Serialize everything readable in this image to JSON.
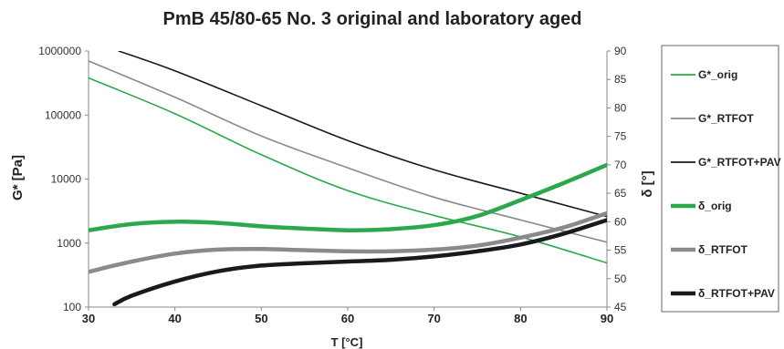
{
  "chart_data": {
    "type": "line",
    "title": "PmB  45/80-65 No. 3 original and laboratory aged",
    "xlabel": "T [°C]",
    "ylabel_left": "G* [Pa]",
    "ylabel_right": "δ [°]",
    "x_ticks": [
      "30",
      "40",
      "50",
      "60",
      "70",
      "80",
      "90"
    ],
    "y_left_ticks": [
      "100",
      "1000",
      "10000",
      "100000",
      "1000000"
    ],
    "y_right_ticks": [
      "45",
      "50",
      "55",
      "60",
      "65",
      "70",
      "75",
      "80",
      "85",
      "90"
    ],
    "xlim": [
      30,
      90
    ],
    "ylim_left": [
      100,
      1000000
    ],
    "ylim_right": [
      45,
      90
    ],
    "y_left_scale": "log",
    "grid": false,
    "legend_position": "right",
    "series": [
      {
        "name": "G*_orig",
        "axis": "left",
        "color": "#2aa84a",
        "style": "thin",
        "x": [
          30,
          40,
          50,
          60,
          70,
          80,
          90
        ],
        "y": [
          380000,
          105000,
          24000,
          6600,
          2700,
          1250,
          490
        ]
      },
      {
        "name": "G*_RTFOT",
        "axis": "left",
        "color": "#8a8a8a",
        "style": "thin",
        "x": [
          30,
          40,
          50,
          60,
          70,
          80,
          90
        ],
        "y": [
          700000,
          190000,
          47000,
          15000,
          5200,
          2300,
          1030
        ]
      },
      {
        "name": "G*_RTFOT+PAV",
        "axis": "left",
        "color": "#1a1a1a",
        "style": "thin",
        "x": [
          33.5,
          40,
          50,
          60,
          70,
          80,
          90
        ],
        "y": [
          1000000,
          490000,
          140000,
          40000,
          14000,
          6000,
          2600
        ]
      },
      {
        "name": "δ_orig",
        "axis": "right",
        "color": "#2aa84a",
        "style": "thick",
        "x": [
          30,
          35,
          40,
          45,
          50,
          55,
          60,
          65,
          70,
          75,
          80,
          85,
          90
        ],
        "y": [
          58.5,
          59.6,
          60.0,
          59.8,
          59.2,
          58.8,
          58.5,
          58.7,
          59.4,
          61.0,
          63.8,
          66.8,
          70.0
        ]
      },
      {
        "name": "δ_RTFOT",
        "axis": "right",
        "color": "#8a8a8a",
        "style": "thick",
        "x": [
          30,
          35,
          40,
          45,
          50,
          55,
          60,
          65,
          70,
          75,
          80,
          85,
          90
        ],
        "y": [
          51.2,
          53.0,
          54.4,
          55.1,
          55.2,
          55.0,
          54.8,
          54.8,
          55.1,
          55.8,
          57.2,
          59.0,
          61.5
        ]
      },
      {
        "name": "δ_RTFOT+PAV",
        "axis": "right",
        "color": "#1a1a1a",
        "style": "thick",
        "x": [
          33,
          35,
          40,
          45,
          50,
          55,
          60,
          65,
          70,
          75,
          80,
          85,
          90
        ],
        "y": [
          45.5,
          47.0,
          49.5,
          51.3,
          52.3,
          52.7,
          53.0,
          53.3,
          53.9,
          54.8,
          56.0,
          57.9,
          60.3
        ]
      }
    ]
  }
}
